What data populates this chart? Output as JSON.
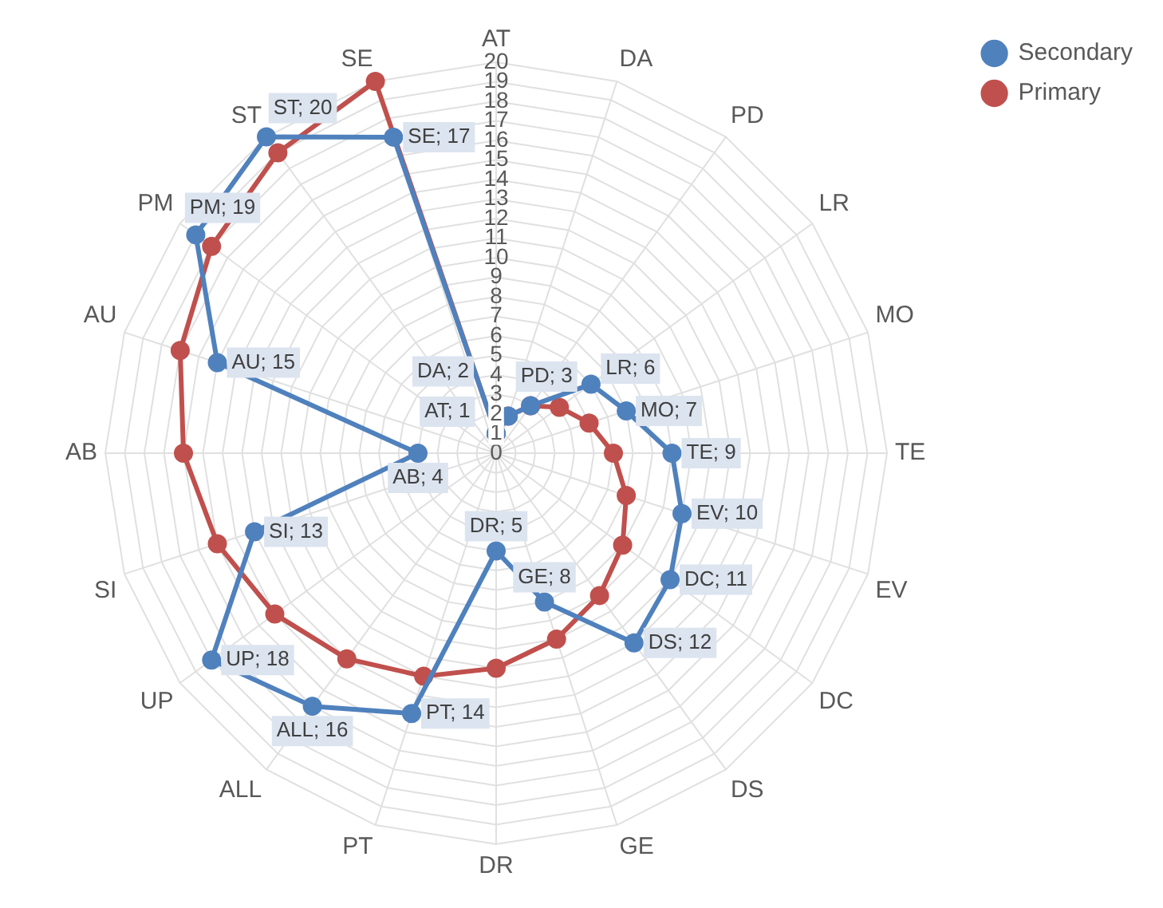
{
  "chart_data": {
    "type": "radar",
    "categories": [
      "AT",
      "DA",
      "PD",
      "LR",
      "MO",
      "TE",
      "EV",
      "DC",
      "DS",
      "GE",
      "DR",
      "PT",
      "ALL",
      "UP",
      "SI",
      "AB",
      "AU",
      "PM",
      "ST",
      "SE"
    ],
    "series": [
      {
        "name": "Secondary",
        "color": "#4f81bd",
        "values": [
          1,
          2,
          3,
          6,
          7,
          9,
          10,
          11,
          12,
          8,
          5,
          14,
          16,
          18,
          13,
          4,
          15,
          19,
          20,
          17
        ],
        "value_labels": [
          "AT; 1",
          "DA; 2",
          "PD; 3",
          "LR; 6",
          "MO; 7",
          "TE; 9",
          "EV; 10",
          "DC; 11",
          "DS; 12",
          "GE; 8",
          "DR; 5",
          "PT; 14",
          "ALL; 16",
          "UP; 18",
          "SI; 13",
          "AB; 4",
          "AU; 15",
          "PM; 19",
          "ST; 20",
          "SE; 17"
        ]
      },
      {
        "name": "Primary",
        "color": "#c0504d",
        "values": [
          1,
          2,
          3,
          4,
          5,
          6,
          7,
          8,
          9,
          10,
          11,
          12,
          13,
          14,
          15,
          16,
          17,
          18,
          19,
          20
        ]
      }
    ],
    "ylim": [
      0,
      20
    ],
    "yticks": [
      0,
      1,
      2,
      3,
      4,
      5,
      6,
      7,
      8,
      9,
      10,
      11,
      12,
      13,
      14,
      15,
      16,
      17,
      18,
      19,
      20
    ],
    "grid": true,
    "legend": "top right",
    "marker": "circle",
    "line_style": "solid"
  }
}
